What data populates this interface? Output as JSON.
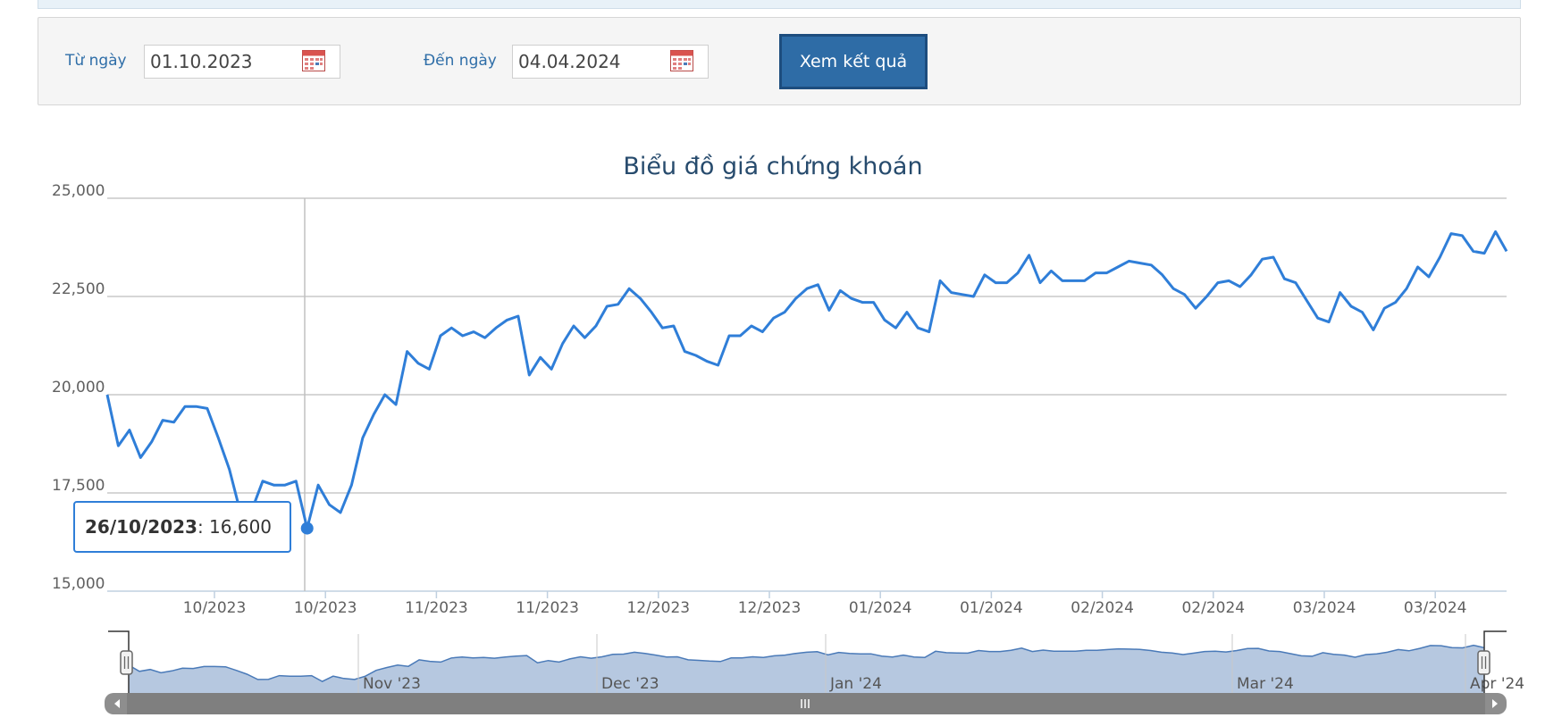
{
  "filter": {
    "from_label": "Từ ngày",
    "from_value": "01.10.2023",
    "to_label": "Đến ngày",
    "to_value": "04.04.2024",
    "submit_label": "Xem kết quả",
    "calendar_icon": "calendar-icon"
  },
  "colors": {
    "line": "#2f7ed8",
    "navigator_fill": "#b6c8e0",
    "navigator_line": "#4a7ab8",
    "title": "#274b6d",
    "button": "#2e6ca6",
    "label": "#2f6ea8"
  },
  "tooltip": {
    "date": "26/10/2023",
    "value": "16,600"
  },
  "navigator": {
    "labels": [
      "Nov '23",
      "Dec '23",
      "Jan '24",
      "Mar '24",
      "Apr '24"
    ],
    "scrollbar_grip_icon": "grip-icon",
    "left_arrow_icon": "arrow-left-icon",
    "right_arrow_icon": "arrow-right-icon"
  },
  "chart_data": {
    "type": "line",
    "title": "Biểu đồ giá chứng khoán",
    "xlabel": "",
    "ylabel": "",
    "ylim": [
      15000,
      25000
    ],
    "y_ticks": [
      "15,000",
      "17,500",
      "20,000",
      "22,500",
      "25,000"
    ],
    "x_ticks": [
      "10/2023",
      "10/2023",
      "11/2023",
      "11/2023",
      "12/2023",
      "12/2023",
      "01/2024",
      "01/2024",
      "02/2024",
      "02/2024",
      "03/2024",
      "03/2024"
    ],
    "grid": true,
    "legend": "none",
    "series": [
      {
        "values": [
          20000,
          18700,
          19100,
          18400,
          18800,
          19350,
          19300,
          19700,
          19700,
          19650,
          18900,
          18100,
          17000,
          17050,
          17800,
          17700,
          17700,
          17800,
          16600,
          17700,
          17200,
          17000,
          17700,
          18900,
          19500,
          20000,
          19750,
          21100,
          20800,
          20650,
          21500,
          21700,
          21500,
          21600,
          21450,
          21700,
          21900,
          22000,
          20500,
          20950,
          20650,
          21300,
          21750,
          21450,
          21750,
          22250,
          22300,
          22700,
          22450,
          22100,
          21700,
          21750,
          21100,
          21000,
          20850,
          20750,
          21500,
          21500,
          21750,
          21600,
          21950,
          22100,
          22450,
          22700,
          22800,
          22150,
          22650,
          22450,
          22350,
          22350,
          21900,
          21700,
          22100,
          21700,
          21600,
          22900,
          22600,
          22550,
          22500,
          23050,
          22850,
          22850,
          23100,
          23550,
          22850,
          23150,
          22900,
          22900,
          22900,
          23100,
          23100,
          23250,
          23400,
          23350,
          23300,
          23050,
          22700,
          22550,
          22200,
          22500,
          22850,
          22900,
          22750,
          23050,
          23450,
          23500,
          22950,
          22850,
          22400,
          21950,
          21850,
          22600,
          22250,
          22100,
          21650,
          22200,
          22350,
          22700,
          23250,
          23000,
          23500,
          24100,
          24050,
          23650,
          23600,
          24150,
          23650
        ]
      }
    ],
    "highlight": {
      "index": 18,
      "date": "26/10/2023",
      "value": 16600
    }
  }
}
